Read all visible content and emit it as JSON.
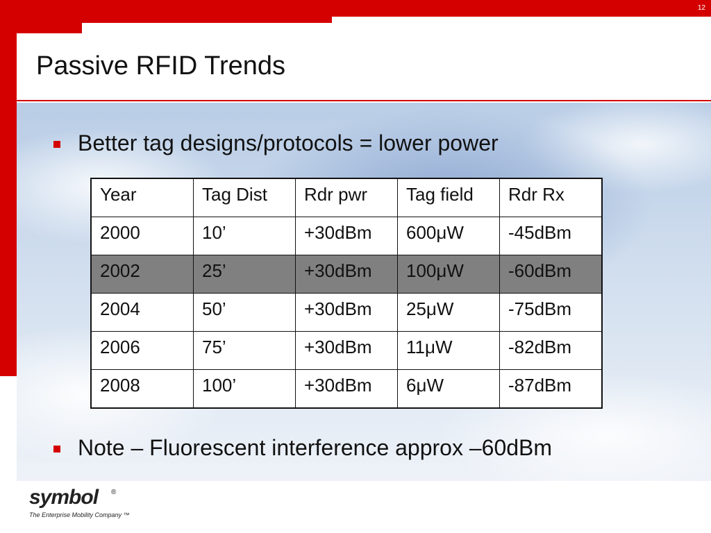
{
  "page_number": "12",
  "title": "Passive RFID Trends",
  "bullets": [
    "Better tag designs/protocols = lower power",
    "Note – Fluorescent interference approx –60dBm"
  ],
  "table": {
    "header": [
      "Year",
      "Tag Dist",
      "Rdr pwr",
      "Tag field",
      "Rdr Rx"
    ],
    "rows": [
      [
        "2000",
        "10’",
        "+30dBm",
        "600μW",
        "-45dBm"
      ],
      [
        "2002",
        "25’",
        "+30dBm",
        "100μW",
        "-60dBm"
      ],
      [
        "2004",
        "50’",
        "+30dBm",
        "25μW",
        "-75dBm"
      ],
      [
        "2006",
        "75’",
        "+30dBm",
        "11μW",
        "-82dBm"
      ],
      [
        "2008",
        "100’",
        "+30dBm",
        "6μW",
        "-87dBm"
      ]
    ]
  },
  "logo": {
    "name": "symbol",
    "mark": "®",
    "tagline": "The Enterprise Mobility Company ™"
  }
}
